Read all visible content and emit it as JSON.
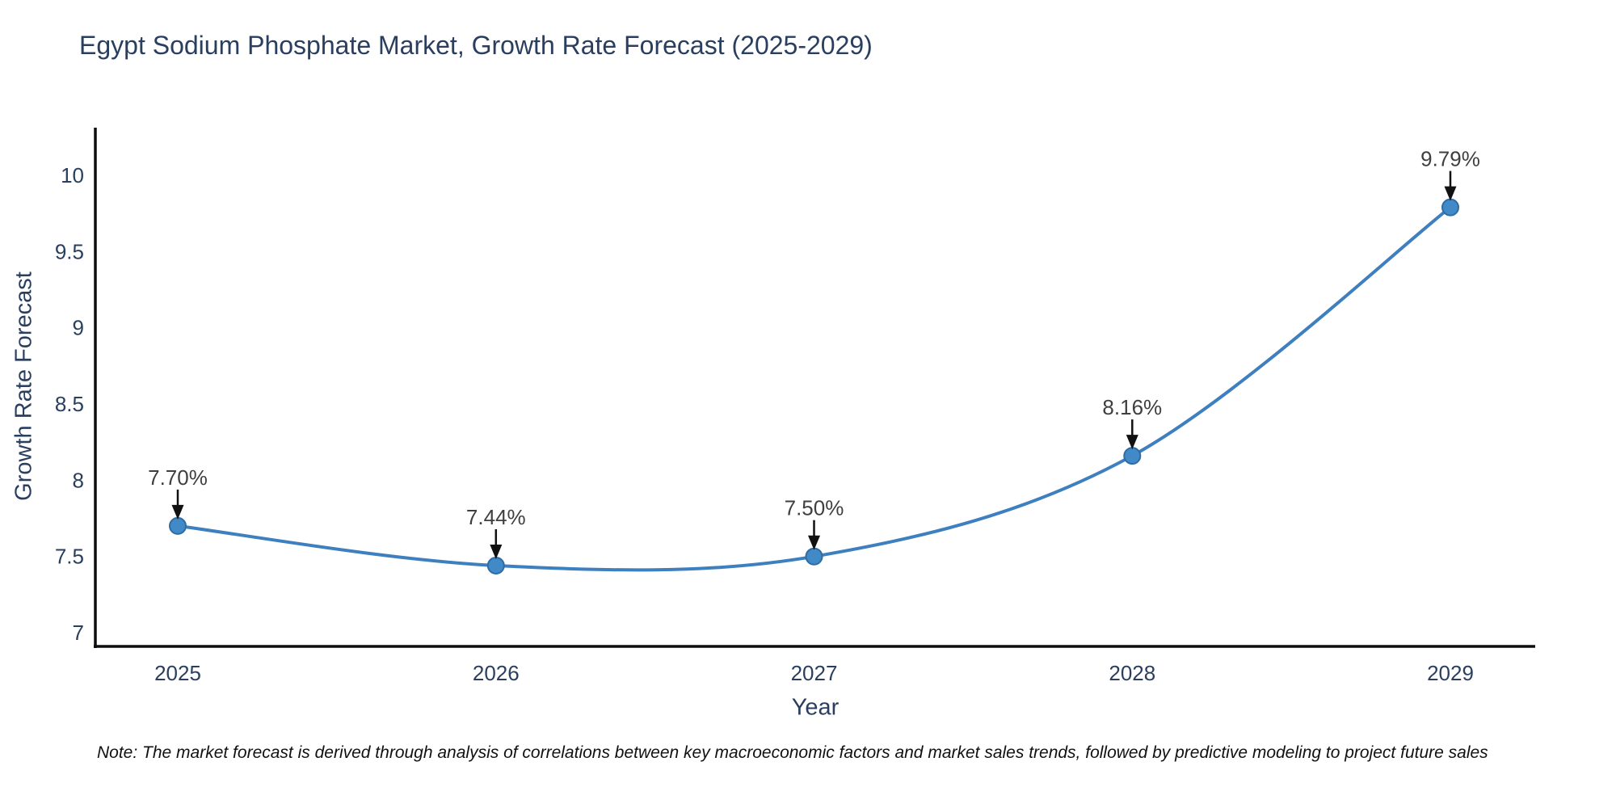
{
  "title": "Egypt Sodium Phosphate Market, Growth Rate Forecast (2025-2029)",
  "note": "Note: The market forecast is derived through analysis of correlations between key macroeconomic factors and market sales trends, followed by predictive modeling to project future sales",
  "colors": {
    "background": "#ffffff",
    "title_text": "#2a3f5f",
    "axis_text": "#2a3f5f",
    "axis_line": "#0d0d0d",
    "line": "#3e7fbf",
    "marker_fill": "#4189c7",
    "marker_edge": "#2e6da4",
    "annotation_text": "#3f3f3f",
    "arrow": "#111111"
  },
  "chart_data": {
    "type": "line",
    "title": "Egypt Sodium Phosphate Market, Growth Rate Forecast (2025-2029)",
    "xlabel": "Year",
    "ylabel": "Growth Rate Forecast",
    "x": [
      2025,
      2026,
      2027,
      2028,
      2029
    ],
    "series": [
      {
        "name": "Growth Rate Forecast",
        "values": [
          7.7,
          7.44,
          7.5,
          8.16,
          9.79
        ],
        "point_labels": [
          "7.70%",
          "7.44%",
          "7.50%",
          "8.16%",
          "9.79%"
        ]
      }
    ],
    "xticks": [
      "2025",
      "2026",
      "2027",
      "2028",
      "2029"
    ],
    "yticks": [
      7,
      7.5,
      8,
      8.5,
      9,
      9.5,
      10
    ],
    "ylim": [
      6.9,
      10.3
    ],
    "grid": false,
    "legend_position": "none",
    "line_shape": "spline",
    "annotations_arrows": true
  }
}
